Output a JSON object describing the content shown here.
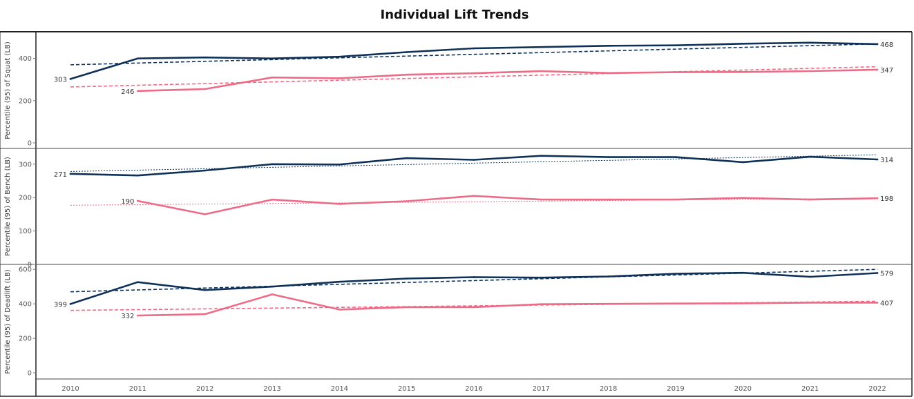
{
  "chart_data": {
    "type": "line",
    "title": "Individual Lift Trends",
    "x": [
      2010,
      2011,
      2012,
      2013,
      2014,
      2015,
      2016,
      2017,
      2018,
      2019,
      2020,
      2021,
      2022
    ],
    "colors": {
      "navy": "#0f3057",
      "pink": "#ec6b86"
    },
    "panels": [
      {
        "ylabel": "Percentile (95) of Squat (LB)",
        "yticks": [
          0,
          200,
          400
        ],
        "ylim": [
          0,
          520
        ],
        "series": [
          {
            "color": "#0f3057",
            "values": [
              303,
              400,
              405,
              400,
              408,
              430,
              448,
              454,
              460,
              462,
              470,
              475,
              468
            ],
            "trend": [
              370,
              469
            ],
            "labels": {
              "first": "303",
              "last": "468"
            }
          },
          {
            "color": "#ec6b86",
            "values": [
              null,
              246,
              255,
              310,
              306,
              323,
              330,
              340,
              331,
              335,
              336,
              340,
              347
            ],
            "trend": [
              265,
              361
            ],
            "labels": {
              "first": "246",
              "last": "347"
            }
          }
        ]
      },
      {
        "ylabel": "Percentile (95) of Bench (LB)",
        "yticks": [
          0,
          100,
          200,
          300
        ],
        "ylim": [
          0,
          345
        ],
        "series": [
          {
            "color": "#0f3057",
            "values": [
              271,
              266,
              281,
              300,
              299,
              318,
              313,
              325,
              321,
              321,
              306,
              322,
              314
            ],
            "trend": [
              278,
              328
            ],
            "labels": {
              "first": "271",
              "last": "314"
            }
          },
          {
            "color": "#ec6b86",
            "values": [
              null,
              190,
              150,
              194,
              181,
              189,
              205,
              194,
              194,
              194,
              199,
              194,
              198
            ],
            "trend": [
              177,
              198
            ],
            "labels": {
              "first": "190",
              "last": "198"
            }
          }
        ]
      },
      {
        "ylabel": "Percentile (95) of Deadlift (LB)",
        "yticks": [
          0,
          200,
          400,
          600
        ],
        "ylim": [
          0,
          625
        ],
        "series": [
          {
            "color": "#0f3057",
            "values": [
              399,
              526,
              480,
              500,
              528,
              547,
              555,
              552,
              559,
              575,
              580,
              557,
              579
            ],
            "trend": [
              470,
              600
            ],
            "labels": {
              "first": "399",
              "last": "579"
            }
          },
          {
            "color": "#ec6b86",
            "values": [
              null,
              332,
              340,
              455,
              367,
              381,
              381,
              398,
              400,
              402,
              403,
              407,
              407
            ],
            "trend": [
              362,
              415
            ],
            "labels": {
              "first": "332",
              "last": "407"
            }
          }
        ]
      }
    ]
  }
}
